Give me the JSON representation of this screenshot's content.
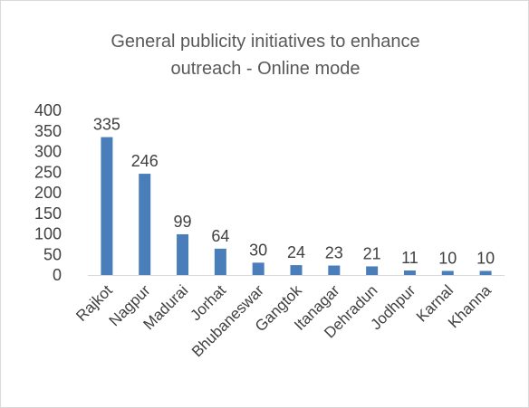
{
  "chart_data": {
    "type": "bar",
    "title_line1": "General publicity initiatives to enhance",
    "title_line2": "outreach - Online mode",
    "categories": [
      "Rajkot",
      "Nagpur",
      "Madurai",
      "Jorhat",
      "Bhubaneswar",
      "Gangtok",
      "Itanagar",
      "Dehradun",
      "Jodhpur",
      "Karnal",
      "Khanna"
    ],
    "values": [
      335,
      246,
      99,
      64,
      30,
      24,
      23,
      21,
      11,
      10,
      10
    ],
    "data_labels": [
      "335",
      "246",
      "99",
      "64",
      "30",
      "24",
      "23",
      "21",
      "11",
      "10",
      "10"
    ],
    "ylim": [
      0,
      400
    ],
    "yticks": [
      0,
      50,
      100,
      150,
      200,
      250,
      300,
      350,
      400
    ],
    "grid": false,
    "legend": "none",
    "bar_color": "#4a7ebb"
  }
}
